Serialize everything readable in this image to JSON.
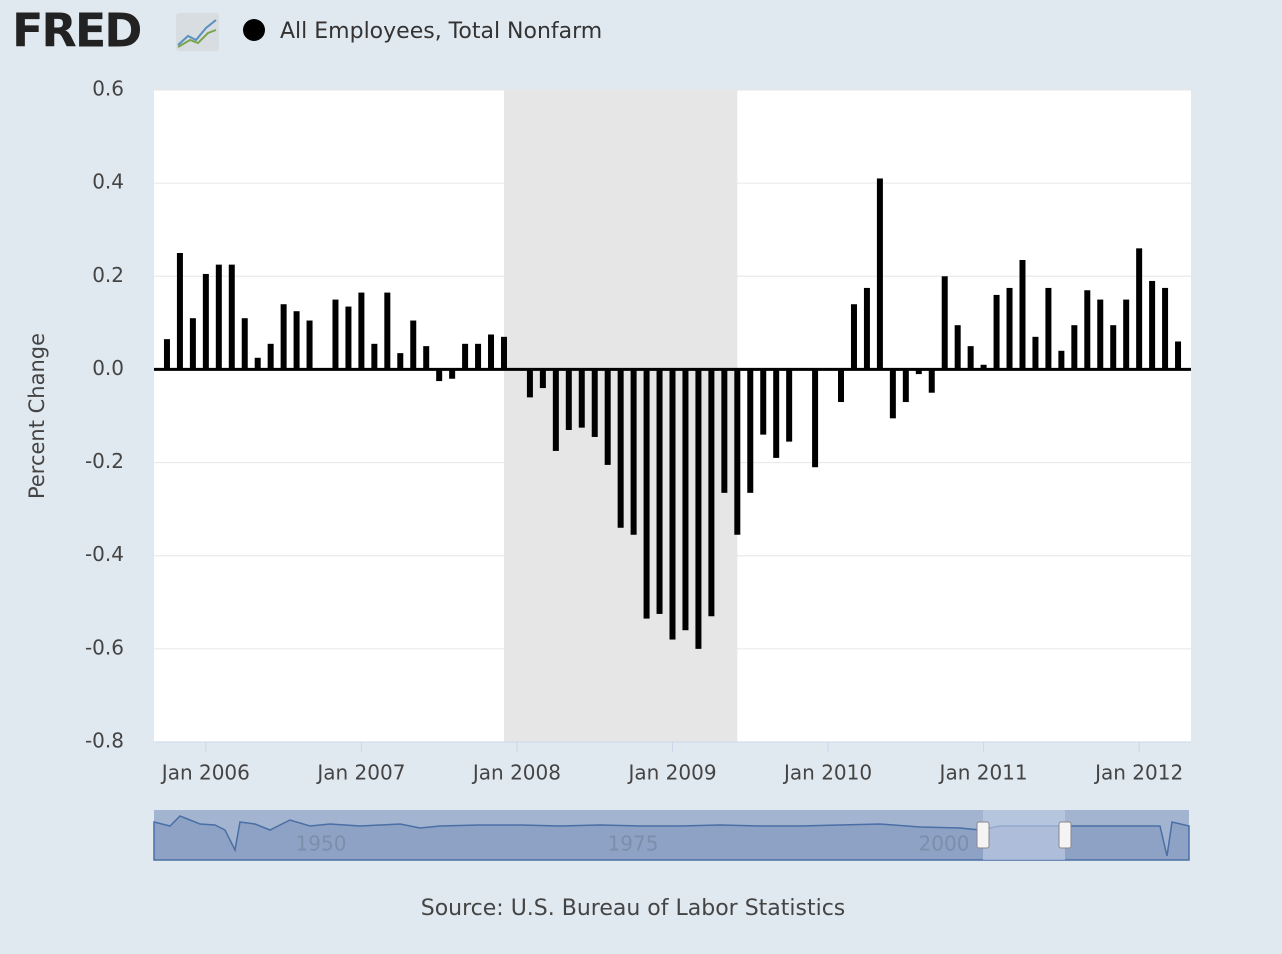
{
  "logo": "FRED",
  "chart_data": {
    "type": "bar",
    "series": [
      {
        "name": "All Employees, Total Nonfarm",
        "color": "#000000",
        "values": [
          0.065,
          0.25,
          0.11,
          0.205,
          0.225,
          0.225,
          0.11,
          0.025,
          0.055,
          0.14,
          0.125,
          0.105,
          0.0,
          0.15,
          0.135,
          0.165,
          0.055,
          0.165,
          0.035,
          0.105,
          0.05,
          -0.025,
          -0.02,
          0.055,
          0.055,
          0.075,
          0.07,
          0.0,
          -0.06,
          -0.04,
          -0.175,
          -0.13,
          -0.125,
          -0.145,
          -0.205,
          -0.34,
          -0.355,
          -0.535,
          -0.525,
          -0.58,
          -0.56,
          -0.6,
          -0.53,
          -0.265,
          -0.355,
          -0.265,
          -0.14,
          -0.19,
          -0.155,
          0.0,
          -0.21,
          0.0,
          -0.07,
          0.14,
          0.175,
          0.41,
          -0.105,
          -0.07,
          -0.01,
          -0.05,
          0.2,
          0.095,
          0.05,
          0.01,
          0.16,
          0.175,
          0.235,
          0.07,
          0.175,
          0.04,
          0.095,
          0.17,
          0.15,
          0.095,
          0.15,
          0.26,
          0.19,
          0.175,
          0.06
        ]
      }
    ],
    "x": [
      "2005-10",
      "2005-11",
      "2005-12",
      "2006-01",
      "2006-02",
      "2006-03",
      "2006-04",
      "2006-05",
      "2006-06",
      "2006-07",
      "2006-08",
      "2006-09",
      "2006-10",
      "2006-11",
      "2006-12",
      "2007-01",
      "2007-02",
      "2007-03",
      "2007-04",
      "2007-05",
      "2007-06",
      "2007-07",
      "2007-08",
      "2007-09",
      "2007-10",
      "2007-11",
      "2007-12",
      "2008-01",
      "2008-02",
      "2008-03",
      "2008-04",
      "2008-05",
      "2008-06",
      "2008-07",
      "2008-08",
      "2008-09",
      "2008-10",
      "2008-11",
      "2008-12",
      "2009-01",
      "2009-02",
      "2009-03",
      "2009-04",
      "2009-05",
      "2009-06",
      "2009-07",
      "2009-08",
      "2009-09",
      "2009-10",
      "2009-11",
      "2009-12",
      "2010-01",
      "2010-02",
      "2010-03",
      "2010-04",
      "2010-05",
      "2010-06",
      "2010-07",
      "2010-08",
      "2010-09",
      "2010-10",
      "2010-11",
      "2010-12",
      "2011-01",
      "2011-02",
      "2011-03",
      "2011-04",
      "2011-05",
      "2011-06",
      "2011-07",
      "2011-08",
      "2011-09",
      "2011-10",
      "2011-11",
      "2011-12",
      "2012-01",
      "2012-02",
      "2012-03",
      "2012-04"
    ],
    "xlim": [
      "2005-09",
      "2012-05"
    ],
    "xticks": [
      {
        "value": "2006-01",
        "label": "Jan 2006"
      },
      {
        "value": "2007-01",
        "label": "Jan 2007"
      },
      {
        "value": "2008-01",
        "label": "Jan 2008"
      },
      {
        "value": "2009-01",
        "label": "Jan 2009"
      },
      {
        "value": "2010-01",
        "label": "Jan 2010"
      },
      {
        "value": "2011-01",
        "label": "Jan 2011"
      },
      {
        "value": "2012-01",
        "label": "Jan 2012"
      }
    ],
    "ylim": [
      -0.8,
      0.6
    ],
    "yticks": [
      -0.8,
      -0.6,
      -0.4,
      -0.2,
      {
        "value": 0,
        "label": "0.0"
      },
      0.2,
      0.4,
      0.6
    ],
    "y_label": "Percent Change",
    "grid": true,
    "recession": {
      "start": "2007-12",
      "end": "2009-06"
    },
    "navigator_labels": [
      "1950",
      "1975",
      "2000"
    ],
    "source": "Source: U.S. Bureau of Labor Statistics"
  }
}
